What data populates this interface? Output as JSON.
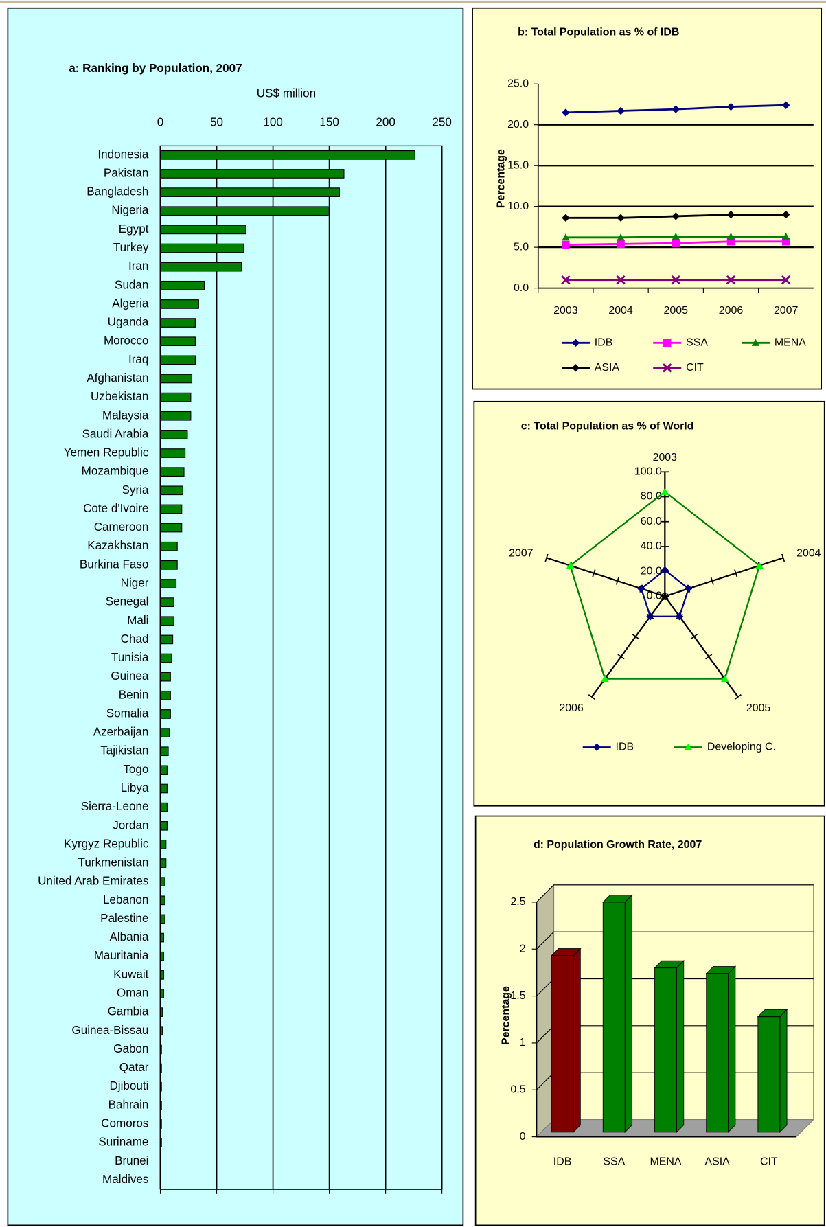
{
  "chart_data": [
    {
      "type": "barh",
      "title": "a: Ranking by Population,  2007",
      "xlabel": "US$ million",
      "categories": [
        "Indonesia",
        "Pakistan",
        "Bangladesh",
        "Nigeria",
        "Egypt",
        "Turkey",
        "Iran",
        "Sudan",
        "Algeria",
        "Uganda",
        "Morocco",
        "Iraq",
        "Afghanistan",
        "Uzbekistan",
        "Malaysia",
        "Saudi Arabia",
        "Yemen Republic",
        "Mozambique",
        "Syria",
        "Cote d'Ivoire",
        "Cameroon",
        "Kazakhstan",
        "Burkina Faso",
        "Niger",
        "Senegal",
        "Mali",
        "Chad",
        "Tunisia",
        "Guinea",
        "Benin",
        "Somalia",
        "Azerbaijan",
        "Tajikistan",
        "Togo",
        "Libya",
        "Sierra-Leone",
        "Jordan",
        "Kyrgyz Republic",
        "Turkmenistan",
        "United Arab Emirates",
        "Lebanon",
        "Palestine",
        "Albania",
        "Mauritania",
        "Kuwait",
        "Oman",
        "Gambia",
        "Guinea-Bissau",
        "Gabon",
        "Qatar",
        "Djibouti",
        "Bahrain",
        "Comoros",
        "Suriname",
        "Brunei",
        "Maldives"
      ],
      "values": [
        226,
        163,
        159,
        149,
        76,
        74,
        72,
        39,
        34,
        31,
        31,
        31,
        28,
        27,
        27,
        24,
        22,
        21,
        20,
        19,
        19,
        15,
        15,
        14,
        12,
        12,
        11,
        10,
        9,
        9,
        9,
        8,
        7,
        6,
        6,
        6,
        6,
        5,
        5,
        4,
        4,
        4,
        3,
        3,
        3,
        3,
        2,
        2,
        1,
        1,
        1,
        1,
        1,
        1,
        0.4,
        0.3
      ],
      "color": "#008000",
      "xlim": [
        0,
        250
      ],
      "xticks": [
        0,
        50,
        100,
        150,
        200,
        250
      ],
      "grid": true
    },
    {
      "type": "line",
      "title": "b: Total Population as % of IDB",
      "ylabel": "Percentage",
      "categories": [
        "2003",
        "2004",
        "2005",
        "2006",
        "2007"
      ],
      "series": [
        {
          "name": "IDB",
          "color": "#000080",
          "marker": "diamond",
          "values": [
            21.5,
            21.7,
            21.9,
            22.2,
            22.4
          ]
        },
        {
          "name": "SSA",
          "color": "#ff00ff",
          "marker": "square",
          "values": [
            5.3,
            5.4,
            5.5,
            5.7,
            5.7
          ]
        },
        {
          "name": "MENA",
          "color": "#008000",
          "marker": "triangle",
          "values": [
            6.2,
            6.2,
            6.3,
            6.3,
            6.3
          ]
        },
        {
          "name": "ASIA",
          "color": "#000000",
          "marker": "diamond",
          "values": [
            8.6,
            8.6,
            8.8,
            9.0,
            9.0
          ]
        },
        {
          "name": "CIT",
          "color": "#800080",
          "marker": "x",
          "values": [
            1.0,
            1.0,
            1.0,
            1.0,
            1.0
          ]
        }
      ],
      "ylim": [
        0,
        25
      ],
      "yticks": [
        {
          "value": 0,
          "label": "0.0"
        },
        {
          "value": 5,
          "label": "5.0"
        },
        {
          "value": 10,
          "label": "10.0"
        },
        {
          "value": 15,
          "label": "15.0"
        },
        {
          "value": 20,
          "label": "20.0"
        },
        {
          "value": 25,
          "label": "25.0"
        }
      ],
      "grid": true
    },
    {
      "type": "radar",
      "title": "c: Total Population as % of World",
      "categories": [
        "2003",
        "2004",
        "2005",
        "2006",
        "2007"
      ],
      "series": [
        {
          "name": "IDB",
          "color": "#000080",
          "marker": "diamond",
          "marker_color": "#000080",
          "values": [
            21,
            20,
            20,
            20,
            20
          ]
        },
        {
          "name": "Developing C.",
          "color": "#008000",
          "marker": "triangle",
          "marker_color": "#00ff00",
          "values": [
            84,
            80,
            82,
            82,
            80
          ]
        }
      ],
      "rlim": [
        0,
        100
      ],
      "rticks": [
        {
          "value": 0,
          "label": "0.0"
        },
        {
          "value": 20,
          "label": "20.0"
        },
        {
          "value": 40,
          "label": "40.0"
        },
        {
          "value": 60,
          "label": "60.0"
        },
        {
          "value": 80,
          "label": "80.0"
        },
        {
          "value": 100,
          "label": "100.0"
        }
      ]
    },
    {
      "type": "bar3d",
      "title": "d: Population Growth Rate, 2007",
      "ylabel": "Percentage",
      "categories": [
        "IDB",
        "SSA",
        "MENA",
        "ASIA",
        "CIT"
      ],
      "values": [
        1.88,
        2.45,
        1.75,
        1.69,
        1.23
      ],
      "colors": [
        "#800000",
        "#008000",
        "#008000",
        "#008000",
        "#008000"
      ],
      "ylim": [
        0,
        2.5
      ],
      "yticks": [
        0,
        0.5,
        1,
        1.5,
        2,
        2.5
      ],
      "grid": true
    }
  ]
}
